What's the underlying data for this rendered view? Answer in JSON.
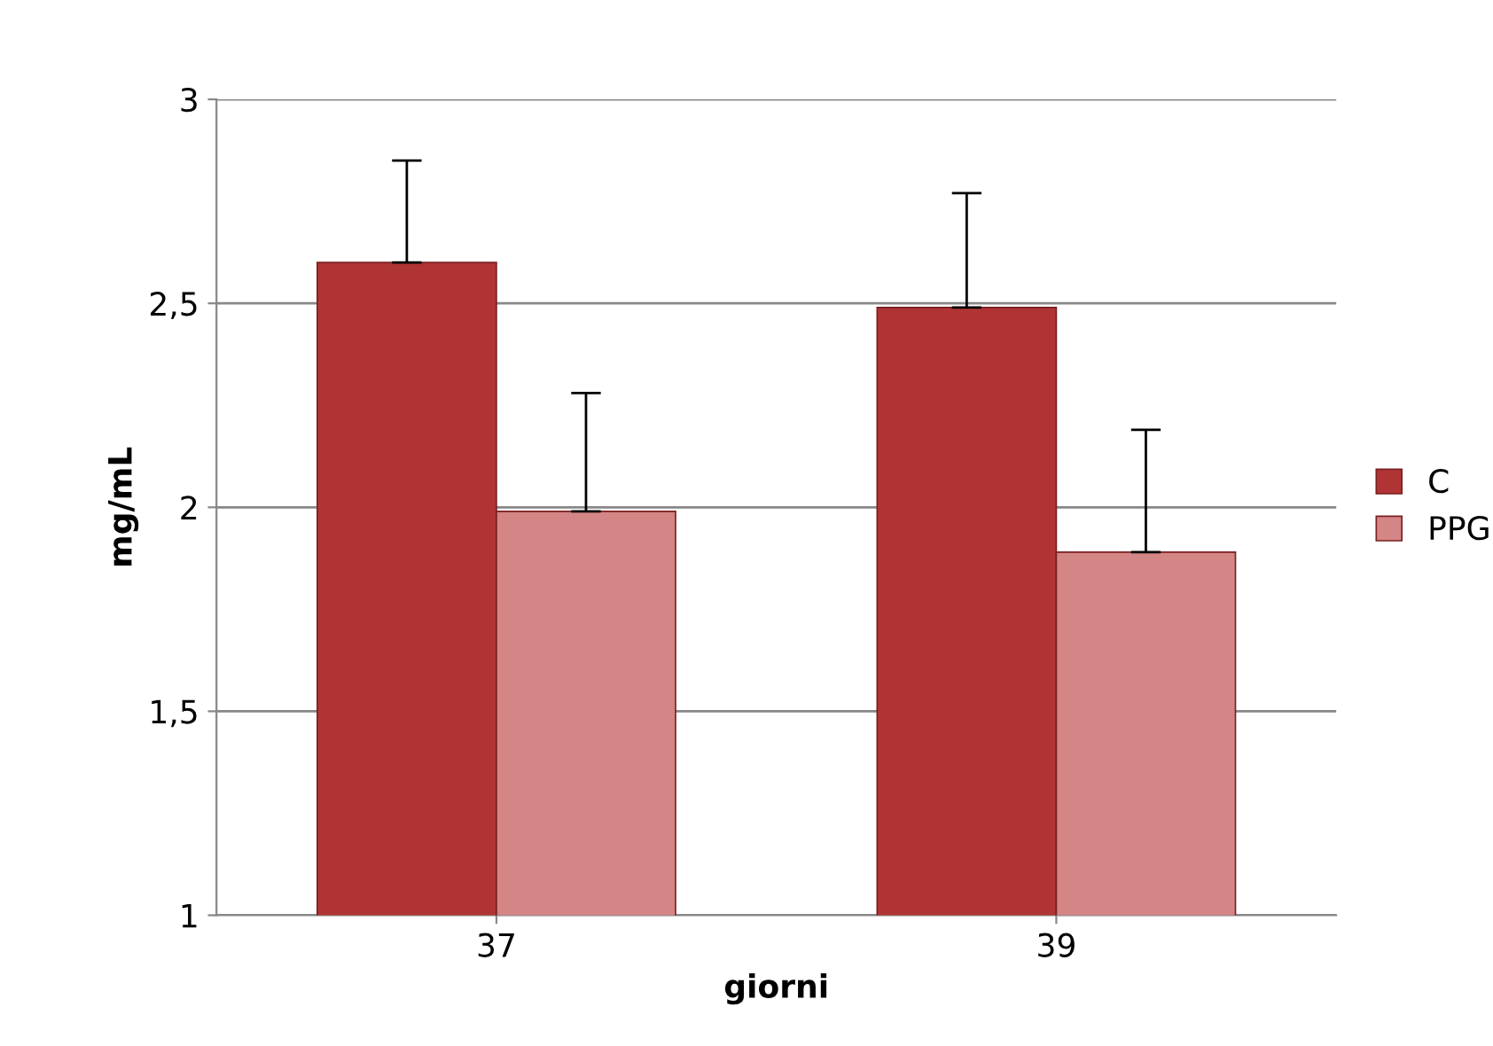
{
  "chart_data": {
    "type": "bar",
    "xlabel": "giorni",
    "ylabel": "mg/mL",
    "categories": [
      "37",
      "39"
    ],
    "series": [
      {
        "name": "C",
        "color": "#b03434",
        "values": [
          2.6,
          2.49
        ],
        "errors": [
          [
            2.6,
            2.85
          ],
          [
            2.49,
            2.77
          ]
        ]
      },
      {
        "name": "PPG",
        "color": "#d48585",
        "values": [
          1.99,
          1.89
        ],
        "errors": [
          [
            1.99,
            2.28
          ],
          [
            1.89,
            2.19
          ]
        ]
      }
    ],
    "ylim": [
      1,
      3
    ],
    "yticks": [
      {
        "value": 1,
        "label": "1"
      },
      {
        "value": 1.5,
        "label": "1,5"
      },
      {
        "value": 2,
        "label": "2"
      },
      {
        "value": 2.5,
        "label": "2,5"
      },
      {
        "value": 3,
        "label": "3"
      }
    ],
    "grid": "y",
    "legend": "right"
  }
}
